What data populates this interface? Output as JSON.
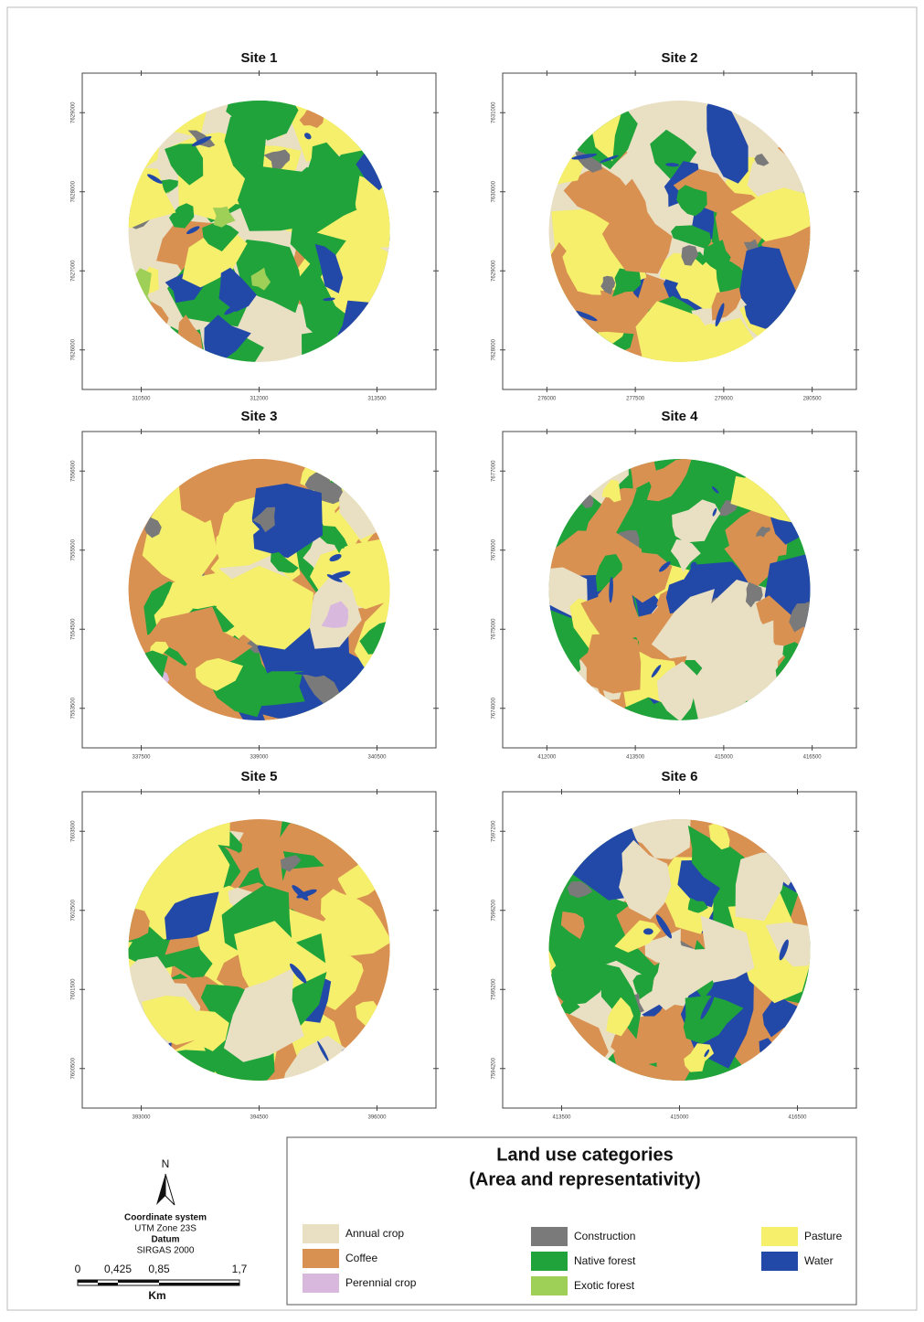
{
  "maps": [
    {
      "title": "Site 1",
      "xticks": [
        310500,
        312000,
        313500
      ],
      "yticks": [
        7629000,
        7628000,
        7627000,
        7626000
      ]
    },
    {
      "title": "Site 2",
      "xticks": [
        276000,
        277500,
        279000,
        280500
      ],
      "yticks": [
        7631000,
        7630000,
        7629000,
        7628000
      ]
    },
    {
      "title": "Site 3",
      "xticks": [
        337500,
        339000,
        340500
      ],
      "yticks": [
        7556500,
        7555500,
        7554500,
        7553500
      ]
    },
    {
      "title": "Site 4",
      "xticks": [
        412000,
        413500,
        415000,
        416500
      ],
      "yticks": [
        7677000,
        7676000,
        7675000,
        7674000
      ]
    },
    {
      "title": "Site 5",
      "xticks": [
        393000,
        394500,
        396000
      ],
      "yticks": [
        7603500,
        7602500,
        7601500,
        7600500
      ]
    },
    {
      "title": "Site 6",
      "xticks": [
        413500,
        415000,
        416500
      ],
      "yticks": [
        7597200,
        7596200,
        7595200,
        7594200
      ]
    }
  ],
  "legend": {
    "title": "Land use categories",
    "subtitle": "(Area and representativity)",
    "items": [
      {
        "label": "Annual crop",
        "color": "#e9dfc3"
      },
      {
        "label": "Coffee",
        "color": "#d99152"
      },
      {
        "label": "Perennial crop",
        "color": "#d9b8dd"
      },
      {
        "label": "Construction",
        "color": "#7a7a7a"
      },
      {
        "label": "Native forest",
        "color": "#1fa33a"
      },
      {
        "label": "Exotic forest",
        "color": "#9ecf57"
      },
      {
        "label": "Pasture",
        "color": "#f5ef6b"
      },
      {
        "label": "Water",
        "color": "#2349a8"
      }
    ]
  },
  "north": "N",
  "coordinates": {
    "label": "Coordinate system",
    "system": "UTM Zone 23S",
    "datum_label": "Datum",
    "datum": "SIRGAS 2000"
  },
  "scale": {
    "labels": [
      "0",
      "0,425",
      "0,85",
      "1,7"
    ],
    "unit": "Km"
  }
}
